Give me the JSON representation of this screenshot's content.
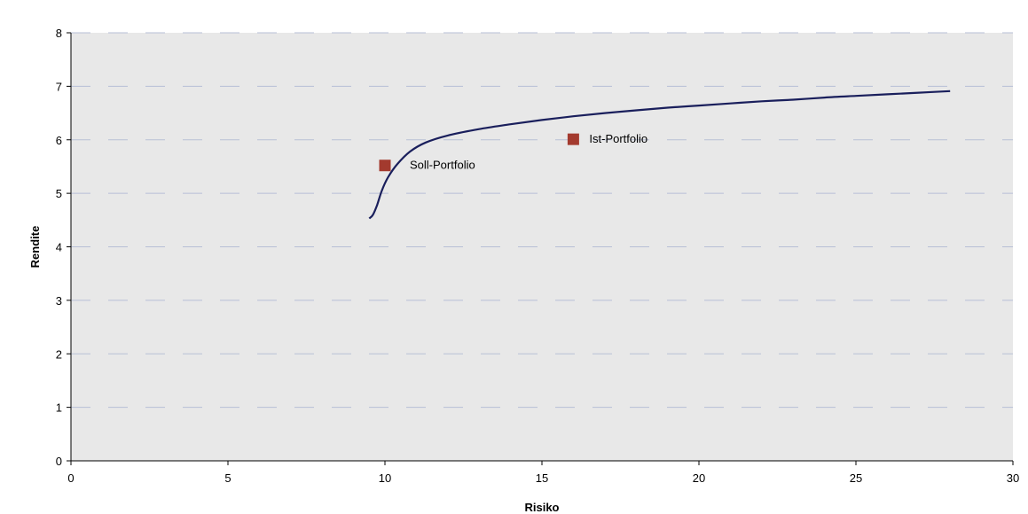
{
  "chart_data": {
    "type": "scatter",
    "title": "",
    "xlabel": "Risiko",
    "ylabel": "Rendite",
    "xlim": [
      0,
      30
    ],
    "ylim": [
      0,
      8
    ],
    "x_ticks": [
      0,
      5,
      10,
      15,
      20,
      25,
      30
    ],
    "y_ticks": [
      0,
      1,
      2,
      3,
      4,
      5,
      6,
      7,
      8
    ],
    "grid": true,
    "legend": "none",
    "frontier": {
      "color": "#1a1f5c",
      "points": [
        [
          9.5,
          4.53
        ],
        [
          9.62,
          4.6
        ],
        [
          9.75,
          4.78
        ],
        [
          9.9,
          5.05
        ],
        [
          10.1,
          5.3
        ],
        [
          10.4,
          5.55
        ],
        [
          10.8,
          5.78
        ],
        [
          11.3,
          5.95
        ],
        [
          12.0,
          6.08
        ],
        [
          13.0,
          6.2
        ],
        [
          14.0,
          6.29
        ],
        [
          15.0,
          6.37
        ],
        [
          16.0,
          6.44
        ],
        [
          17.0,
          6.5
        ],
        [
          18.0,
          6.55
        ],
        [
          19.0,
          6.6
        ],
        [
          20.0,
          6.64
        ],
        [
          21.0,
          6.68
        ],
        [
          22.0,
          6.72
        ],
        [
          23.0,
          6.75
        ],
        [
          24.0,
          6.79
        ],
        [
          25.0,
          6.82
        ],
        [
          26.0,
          6.85
        ],
        [
          27.0,
          6.88
        ],
        [
          28.0,
          6.91
        ]
      ]
    },
    "points": [
      {
        "label": "Soll-Portfolio",
        "x": 10.0,
        "y": 5.52,
        "color": "#a33a2e"
      },
      {
        "label": "Ist-Portfolio",
        "x": 16.0,
        "y": 6.01,
        "color": "#a33a2e"
      }
    ],
    "colors": {
      "plot_background": "#e8e8e8",
      "gridline": "#b7bfd6",
      "axis": "#000000"
    }
  }
}
